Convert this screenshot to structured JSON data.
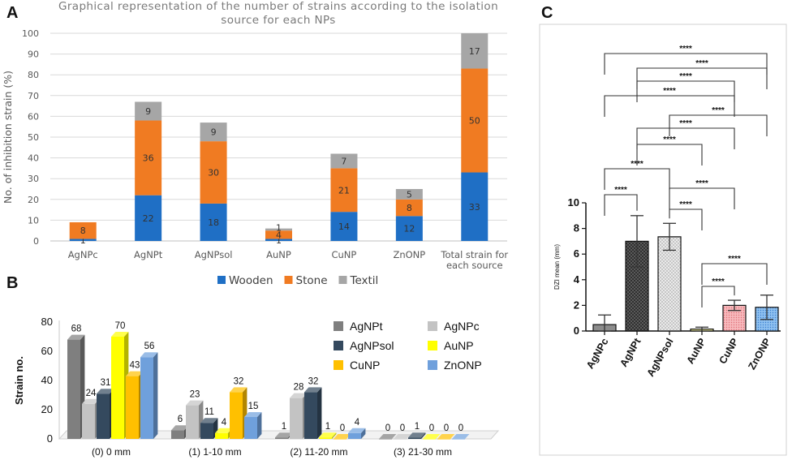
{
  "panels": {
    "a": "A",
    "b": "B",
    "c": "C"
  },
  "chart_data": [
    {
      "type": "bar",
      "stacked": true,
      "title": "Graphical representation of the number of strains according to the isolation source for each NPs",
      "title_lines": [
        "Graphical representation of the number of strains according to the isolation",
        "source for each NPs"
      ],
      "ylabel": "No. of inhibition strain (%)",
      "ylim": [
        0,
        100
      ],
      "yticks": [
        0,
        10,
        20,
        30,
        40,
        50,
        60,
        70,
        80,
        90,
        100
      ],
      "categories": [
        "AgNPc",
        "AgNPt",
        "AgNPsol",
        "AuNP",
        "CuNP",
        "ZnONP",
        "Total strain for each source"
      ],
      "category_lines": [
        [
          "AgNPc"
        ],
        [
          "AgNPt"
        ],
        [
          "AgNPsol"
        ],
        [
          "AuNP"
        ],
        [
          "CuNP"
        ],
        [
          "ZnONP"
        ],
        [
          "Total strain for",
          "each source"
        ]
      ],
      "series": [
        {
          "name": "Wooden",
          "color": "#1f6fc5",
          "values": [
            1,
            22,
            18,
            1,
            14,
            12,
            33
          ],
          "labels": [
            "1",
            "22",
            "18",
            "1",
            "14",
            "12",
            "33"
          ]
        },
        {
          "name": "Stone",
          "color": "#f07b22",
          "values": [
            8,
            36,
            30,
            4,
            21,
            8,
            50
          ],
          "labels": [
            "8",
            "36",
            "30",
            "4",
            "21",
            "8",
            "50"
          ]
        },
        {
          "name": "Textil",
          "color": "#a6a6a6",
          "values": [
            0,
            9,
            9,
            1,
            7,
            5,
            17
          ],
          "labels": [
            "",
            "9",
            "9",
            "1",
            "7",
            "5",
            "17"
          ]
        }
      ],
      "legend_position": "bottom",
      "grid": true
    },
    {
      "type": "bar",
      "style": "3d-clustered",
      "ylabel": "Strain no.",
      "ylim": [
        0,
        80
      ],
      "yticks": [
        0,
        20,
        40,
        60,
        80
      ],
      "categories": [
        "(0) 0 mm",
        "(1) 1-10 mm",
        "(2) 11-20 mm",
        "(3) 21-30 mm"
      ],
      "series": [
        {
          "name": "AgNPt",
          "color": "#7f7f7f",
          "values": [
            68,
            6,
            1,
            0
          ]
        },
        {
          "name": "AgNPc",
          "color": "#c3c3c3",
          "values": [
            24,
            23,
            28,
            0
          ]
        },
        {
          "name": "AgNPsol",
          "color": "#34495e",
          "values": [
            31,
            11,
            32,
            1
          ]
        },
        {
          "name": "AuNP",
          "color": "#ffff00",
          "values": [
            70,
            4,
            1,
            0
          ]
        },
        {
          "name": "CuNP",
          "color": "#ffc000",
          "values": [
            43,
            32,
            0,
            0
          ]
        },
        {
          "name": "ZnONP",
          "color": "#6fa0dc",
          "values": [
            56,
            15,
            4,
            0
          ]
        }
      ],
      "legend_position": "top-right"
    },
    {
      "type": "bar",
      "style": "patterned-with-error-bars",
      "ylabel": "DZI mean (mm)",
      "ylim": [
        0,
        10
      ],
      "yticks": [
        0,
        2,
        4,
        6,
        8,
        10
      ],
      "categories": [
        "AgNPc",
        "AgNPt",
        "AgNPsol",
        "AuNP",
        "CuNP",
        "ZnONP"
      ],
      "values": [
        0.5,
        7.0,
        7.35,
        0.15,
        2.0,
        1.85
      ],
      "errors": [
        0.75,
        2.0,
        1.05,
        0.15,
        0.4,
        0.95
      ],
      "colors": [
        "#8c8c8c",
        "#5c5c5c",
        "#e8e8e8",
        "#f2f09a",
        "#f4a3a8",
        "#7ab4ec"
      ],
      "significance_label": "****",
      "comparisons": [
        [
          "AgNPc",
          "ZnONP"
        ],
        [
          "AgNPt",
          "ZnONP"
        ],
        [
          "AgNPt",
          "CuNP"
        ],
        [
          "AgNPc",
          "CuNP"
        ],
        [
          "AgNPsol",
          "ZnONP"
        ],
        [
          "AgNPt",
          "CuNP"
        ],
        [
          "AgNPt",
          "AuNP"
        ],
        [
          "AgNPc",
          "AgNPsol"
        ],
        [
          "AgNPsol",
          "CuNP"
        ],
        [
          "AgNPc",
          "AgNPt"
        ],
        [
          "AgNPsol",
          "AuNP"
        ],
        [
          "AuNP",
          "ZnONP"
        ],
        [
          "AuNP",
          "CuNP"
        ]
      ]
    }
  ]
}
